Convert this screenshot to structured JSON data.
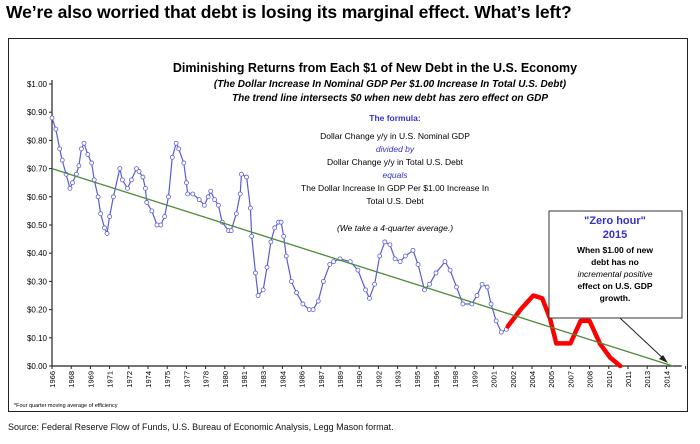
{
  "headline": "We’re also worried that debt is losing its marginal effect. What’s left?",
  "source": "Source: Federal Reserve Flow of Funds, U.S. Bureau of Economic Analysis, Legg Mason format.",
  "chart_data": {
    "type": "line",
    "title": "Diminishing Returns from Each $1 of New Debt in the U.S. Economy",
    "subtitle": [
      "(The Dollar Increase In Nominal GDP Per $1.00 Increase In Total U.S. Debt)",
      "The trend line intersects $0 when new debt has zero effect on GDP"
    ],
    "formula": {
      "heading": "The formula:",
      "line1": "Dollar Change y/y in U.S. Nominal GDP",
      "op1": "divided by",
      "line2": "Dollar Change y/y in Total U.S. Debt",
      "op2": "equals",
      "line3a": "The Dollar Increase In GDP Per $1.00 Increase In",
      "line3b": "Total U.S. Debt",
      "note": "(We take a 4-quarter average.)"
    },
    "annotation": {
      "title": "\"Zero hour\"",
      "year": "2015",
      "lines": [
        "When $1.00 of new",
        "debt has no",
        "incremental positive",
        "effect on U.S. GDP",
        "growth."
      ]
    },
    "footnote": "*Four quarter moving average of efficiency",
    "ylim": [
      0,
      1.0
    ],
    "xlim": [
      1966,
      2015.2
    ],
    "grid": false,
    "y_ticks": [
      "$0.00",
      "$0.10",
      "$0.20",
      "$0.30",
      "$0.40",
      "$0.50",
      "$0.60",
      "$0.70",
      "$0.80",
      "$0.90",
      "$1.00"
    ],
    "x_ticks": [
      "1966",
      "1968",
      "1969",
      "1971",
      "1972",
      "1974",
      "1975",
      "1977",
      "1978",
      "1980",
      "1981",
      "1983",
      "1984",
      "1986",
      "1987",
      "1989",
      "1990",
      "1992",
      "1993",
      "1995",
      "1996",
      "1998",
      "1999",
      "2001",
      "2002",
      "2004",
      "2005",
      "2007",
      "2008",
      "2010",
      "2011",
      "2013",
      "2014"
    ],
    "colors": {
      "actual": "#5b5bd6",
      "projection": "#ff0000",
      "trend": "#4f8a3a",
      "annotation_title": "#3333cc"
    },
    "series": [
      {
        "role": "actual",
        "points": [
          [
            1966.0,
            0.88
          ],
          [
            1966.3,
            0.84
          ],
          [
            1966.6,
            0.77
          ],
          [
            1966.8,
            0.73
          ],
          [
            1967.1,
            0.68
          ],
          [
            1967.4,
            0.63
          ],
          [
            1967.6,
            0.65
          ],
          [
            1967.9,
            0.68
          ],
          [
            1968.1,
            0.71
          ],
          [
            1968.3,
            0.77
          ],
          [
            1968.5,
            0.79
          ],
          [
            1968.8,
            0.75
          ],
          [
            1969.1,
            0.72
          ],
          [
            1969.3,
            0.66
          ],
          [
            1969.6,
            0.6
          ],
          [
            1969.8,
            0.54
          ],
          [
            1970.1,
            0.49
          ],
          [
            1970.3,
            0.47
          ],
          [
            1970.5,
            0.53
          ],
          [
            1970.8,
            0.6
          ],
          [
            1971.3,
            0.7
          ],
          [
            1971.5,
            0.66
          ],
          [
            1971.9,
            0.63
          ],
          [
            1972.2,
            0.66
          ],
          [
            1972.6,
            0.7
          ],
          [
            1972.8,
            0.69
          ],
          [
            1973.1,
            0.67
          ],
          [
            1973.3,
            0.63
          ],
          [
            1973.4,
            0.58
          ],
          [
            1973.8,
            0.55
          ],
          [
            1974.2,
            0.5
          ],
          [
            1974.5,
            0.5
          ],
          [
            1974.8,
            0.53
          ],
          [
            1975.1,
            0.6
          ],
          [
            1975.4,
            0.74
          ],
          [
            1975.7,
            0.79
          ],
          [
            1975.9,
            0.77
          ],
          [
            1976.3,
            0.72
          ],
          [
            1976.5,
            0.65
          ],
          [
            1976.6,
            0.61
          ],
          [
            1977.0,
            0.61
          ],
          [
            1977.5,
            0.59
          ],
          [
            1977.9,
            0.57
          ],
          [
            1978.2,
            0.6
          ],
          [
            1978.4,
            0.62
          ],
          [
            1978.7,
            0.59
          ],
          [
            1979.0,
            0.57
          ],
          [
            1979.3,
            0.51
          ],
          [
            1979.8,
            0.48
          ],
          [
            1980.0,
            0.48
          ],
          [
            1980.4,
            0.54
          ],
          [
            1980.7,
            0.61
          ],
          [
            1980.8,
            0.68
          ],
          [
            1981.2,
            0.67
          ],
          [
            1981.5,
            0.56
          ],
          [
            1981.6,
            0.46
          ],
          [
            1981.9,
            0.33
          ],
          [
            1982.1,
            0.25
          ],
          [
            1982.5,
            0.27
          ],
          [
            1982.8,
            0.35
          ],
          [
            1983.1,
            0.44
          ],
          [
            1983.4,
            0.49
          ],
          [
            1983.7,
            0.51
          ],
          [
            1983.9,
            0.51
          ],
          [
            1984.1,
            0.46
          ],
          [
            1984.3,
            0.39
          ],
          [
            1984.7,
            0.3
          ],
          [
            1985.1,
            0.26
          ],
          [
            1985.6,
            0.22
          ],
          [
            1986.1,
            0.2
          ],
          [
            1986.4,
            0.2
          ],
          [
            1986.8,
            0.23
          ],
          [
            1987.2,
            0.3
          ],
          [
            1987.7,
            0.36
          ],
          [
            1988.0,
            0.37
          ],
          [
            1988.5,
            0.38
          ],
          [
            1989.3,
            0.37
          ],
          [
            1989.9,
            0.34
          ],
          [
            1990.5,
            0.27
          ],
          [
            1990.8,
            0.24
          ],
          [
            1991.2,
            0.29
          ],
          [
            1991.6,
            0.39
          ],
          [
            1992.0,
            0.44
          ],
          [
            1992.4,
            0.43
          ],
          [
            1992.8,
            0.38
          ],
          [
            1993.2,
            0.37
          ],
          [
            1993.6,
            0.39
          ],
          [
            1994.2,
            0.41
          ],
          [
            1994.6,
            0.36
          ],
          [
            1995.1,
            0.27
          ],
          [
            1995.5,
            0.29
          ],
          [
            1996.0,
            0.33
          ],
          [
            1996.7,
            0.37
          ],
          [
            1997.1,
            0.34
          ],
          [
            1997.6,
            0.28
          ],
          [
            1998.1,
            0.22
          ],
          [
            1998.8,
            0.22
          ],
          [
            1999.2,
            0.25
          ],
          [
            1999.6,
            0.29
          ],
          [
            2000.0,
            0.28
          ],
          [
            2000.3,
            0.22
          ],
          [
            2000.7,
            0.16
          ],
          [
            2001.1,
            0.12
          ],
          [
            2001.5,
            0.13
          ]
        ]
      },
      {
        "role": "projection",
        "points": [
          [
            2001.6,
            0.14
          ],
          [
            2002.6,
            0.2
          ],
          [
            2003.6,
            0.25
          ],
          [
            2004.3,
            0.24
          ],
          [
            2004.9,
            0.17
          ],
          [
            2005.4,
            0.08
          ],
          [
            2006.5,
            0.08
          ],
          [
            2007.3,
            0.16
          ],
          [
            2008.0,
            0.16
          ],
          [
            2008.8,
            0.08
          ],
          [
            2009.6,
            0.03
          ],
          [
            2010.4,
            0.0
          ]
        ]
      },
      {
        "role": "trend",
        "points": [
          [
            1966,
            0.7
          ],
          [
            2014.5,
            0.0
          ]
        ]
      }
    ]
  }
}
